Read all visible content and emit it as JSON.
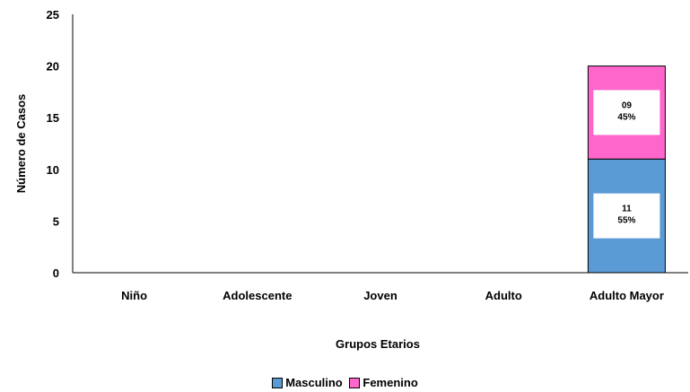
{
  "chart_data": {
    "type": "bar",
    "stacked": true,
    "title": "",
    "xlabel": "Grupos Etarios",
    "ylabel": "Número de Casos",
    "ylim": [
      0,
      25
    ],
    "yticks": [
      0,
      5,
      10,
      15,
      20,
      25
    ],
    "categories": [
      "Niño",
      "Adolescente",
      "Joven",
      "Adulto",
      "Adulto Mayor"
    ],
    "series": [
      {
        "name": "Masculino",
        "color": "#5b9bd5",
        "values": [
          0,
          0,
          0,
          0,
          11
        ],
        "labels": [
          null,
          null,
          null,
          null,
          [
            "11",
            "55%"
          ]
        ]
      },
      {
        "name": "Femenino",
        "color": "#ff66cc",
        "values": [
          0,
          0,
          0,
          0,
          9
        ],
        "labels": [
          null,
          null,
          null,
          null,
          [
            "09",
            "45%"
          ]
        ]
      }
    ],
    "grid": false,
    "legend_position": "bottom"
  }
}
